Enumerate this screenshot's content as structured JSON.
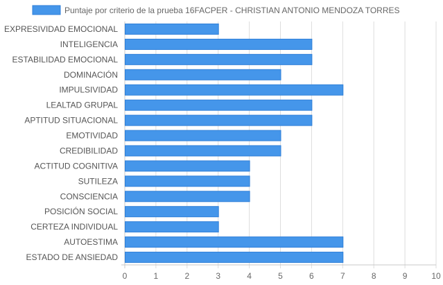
{
  "chart_data": {
    "type": "bar",
    "orientation": "horizontal",
    "categories": [
      "EXPRESIVIDAD EMOCIONAL",
      "INTELIGENCIA",
      "ESTABILIDAD EMOCIONAL",
      "DOMINACIÓN",
      "IMPULSIVIDAD",
      "LEALTAD GRUPAL",
      "APTITUD SITUACIONAL",
      "EMOTIVIDAD",
      "CREDIBILIDAD",
      "ACTITUD COGNITIVA",
      "SUTILEZA",
      "CONSCIENCIA",
      "POSICIÓN SOCIAL",
      "CERTEZA INDIVIDUAL",
      "AUTOESTIMA",
      "ESTADO DE ANSIEDAD"
    ],
    "series": [
      {
        "name": "Puntaje por criterio de la prueba 16FACPER - CHRISTIAN ANTONIO MENDOZA TORRES",
        "values": [
          3,
          6,
          6,
          5,
          7,
          6,
          6,
          5,
          5,
          4,
          4,
          4,
          3,
          3,
          7,
          7
        ]
      }
    ],
    "xlim": [
      0,
      10
    ],
    "xticks": [
      "0",
      "1",
      "2",
      "3",
      "4",
      "5",
      "6",
      "7",
      "8",
      "9",
      "10"
    ],
    "grid": true,
    "legend_position": "top",
    "colors": {
      "bar_fill": "#4596ea",
      "bar_border": "#2f7fd8",
      "grid": "#dddddd",
      "axis": "#c8c8c8"
    }
  }
}
